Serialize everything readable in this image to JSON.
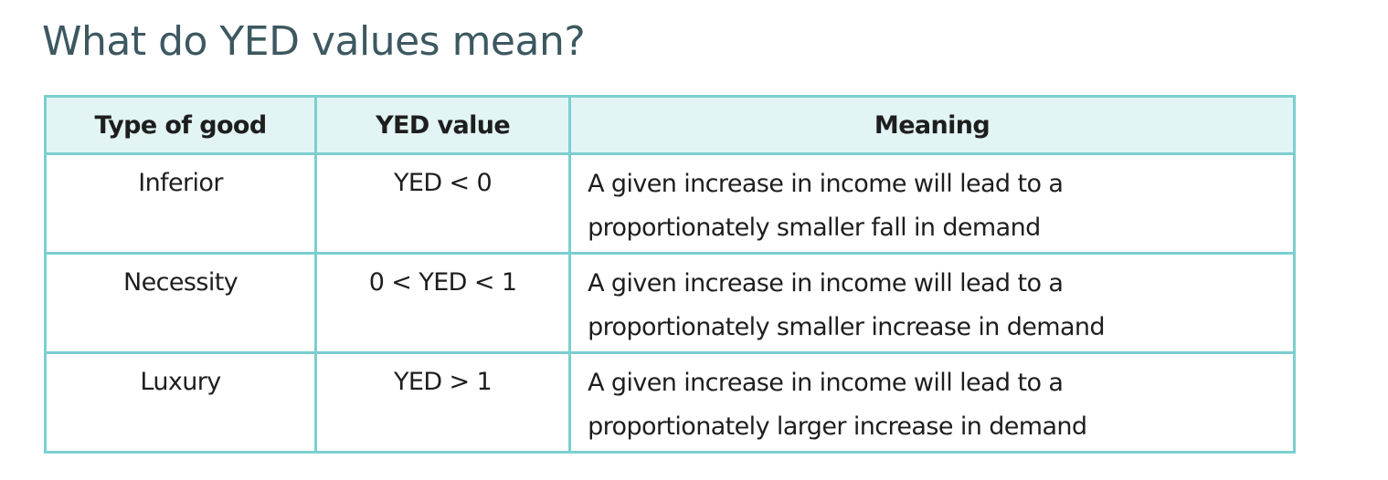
{
  "title": "What do YED values mean?",
  "table": {
    "headers": [
      "Type of good",
      "YED value",
      "Meaning"
    ],
    "rows": [
      {
        "type": "Inferior",
        "value": "YED < 0",
        "meaning_line1": "A given increase in income will lead to a",
        "meaning_line2": "proportionately smaller fall in demand"
      },
      {
        "type": "Necessity",
        "value": "0 < YED < 1",
        "meaning_line1": "A given increase in income will lead to a",
        "meaning_line2": "proportionately smaller increase in demand"
      },
      {
        "type": "Luxury",
        "value": "YED > 1",
        "meaning_line1": "A given increase in income will lead to a",
        "meaning_line2": "proportionately larger increase in demand"
      }
    ]
  },
  "colors": {
    "title": "#3d5860",
    "border": "#7ccfcf",
    "header_bg": "#e2f4f4"
  }
}
